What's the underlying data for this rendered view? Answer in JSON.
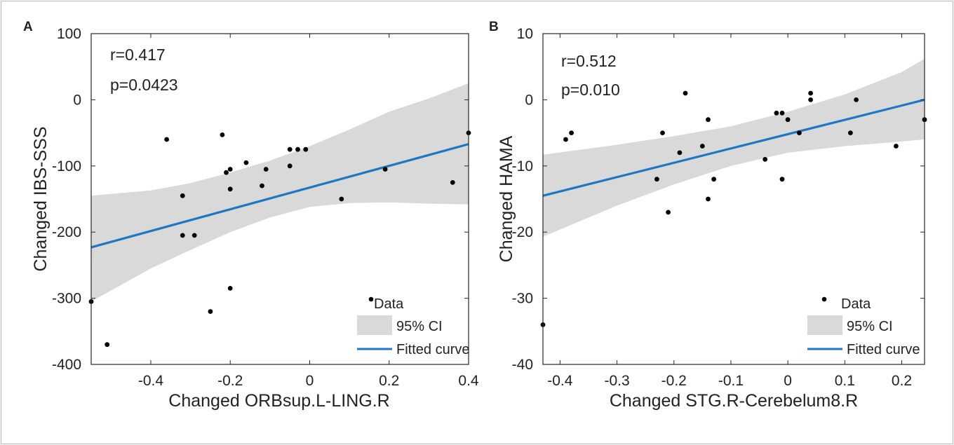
{
  "chart_data": [
    {
      "type": "scatter",
      "panel_label": "A",
      "xlabel": "Changed ORBsup.L-LING.R",
      "ylabel": "Changed IBS-SSS",
      "xlim": [
        -0.55,
        0.4
      ],
      "ylim": [
        -400,
        100
      ],
      "xticks": [
        -0.4,
        -0.2,
        0,
        0.2,
        0.4
      ],
      "xtick_labels": [
        "-0.4",
        "-0.2",
        "0",
        "0.2",
        "0.4"
      ],
      "yticks": [
        100,
        0,
        -100,
        -200,
        -300,
        -400
      ],
      "ytick_labels": [
        "100",
        "0",
        "-100",
        "-200",
        "-300",
        "-400"
      ],
      "annotations": [
        "r=0.417",
        "p=0.0423"
      ],
      "legend": [
        "Data",
        "95% CI",
        "Fitted curve"
      ],
      "legend_position": "bottom-right",
      "grid": false,
      "points": [
        {
          "x": -0.55,
          "y": -305
        },
        {
          "x": -0.51,
          "y": -370
        },
        {
          "x": -0.36,
          "y": -60
        },
        {
          "x": -0.32,
          "y": -145
        },
        {
          "x": -0.32,
          "y": -205
        },
        {
          "x": -0.29,
          "y": -205
        },
        {
          "x": -0.25,
          "y": -320
        },
        {
          "x": -0.22,
          "y": -53
        },
        {
          "x": -0.21,
          "y": -110
        },
        {
          "x": -0.2,
          "y": -105
        },
        {
          "x": -0.2,
          "y": -135
        },
        {
          "x": -0.2,
          "y": -285
        },
        {
          "x": -0.16,
          "y": -95
        },
        {
          "x": -0.12,
          "y": -130
        },
        {
          "x": -0.11,
          "y": -105
        },
        {
          "x": -0.05,
          "y": -75
        },
        {
          "x": -0.05,
          "y": -100
        },
        {
          "x": -0.03,
          "y": -75
        },
        {
          "x": -0.01,
          "y": -75
        },
        {
          "x": 0.08,
          "y": -150
        },
        {
          "x": 0.19,
          "y": -105
        },
        {
          "x": 0.36,
          "y": -125
        },
        {
          "x": 0.4,
          "y": -50
        }
      ],
      "fit_line": {
        "x": [
          -0.55,
          0.4
        ],
        "y": [
          -223,
          -67
        ]
      },
      "ci_upper": {
        "x": [
          -0.55,
          -0.4,
          -0.3,
          -0.2,
          -0.1,
          0,
          0.1,
          0.2,
          0.3,
          0.4
        ],
        "y": [
          -145,
          -137,
          -126,
          -110,
          -92,
          -70,
          -45,
          -18,
          2,
          25
        ]
      },
      "ci_lower": {
        "x": [
          -0.55,
          -0.4,
          -0.3,
          -0.2,
          -0.1,
          0,
          0.1,
          0.2,
          0.3,
          0.4
        ],
        "y": [
          -305,
          -255,
          -227,
          -200,
          -178,
          -162,
          -156,
          -155,
          -157,
          -158
        ]
      },
      "colors": {
        "data": "#000000",
        "ci": "#d9d9d9",
        "fit": "#1f77c4"
      }
    },
    {
      "type": "scatter",
      "panel_label": "B",
      "xlabel": "Changed STG.R-Cerebelum8.R",
      "ylabel": "Changed HAMA",
      "xlim": [
        -0.43,
        0.24
      ],
      "ylim": [
        -40,
        10
      ],
      "xticks": [
        -0.4,
        -0.3,
        -0.2,
        -0.1,
        0,
        0.1,
        0.2
      ],
      "xtick_labels": [
        "-0.4",
        "-0.3",
        "-0.2",
        "-0.1",
        "0",
        "0.1",
        "0.2"
      ],
      "yticks": [
        10,
        0,
        -10,
        -20,
        -30,
        -40
      ],
      "ytick_labels": [
        "10",
        "0",
        "-10",
        "-20",
        "-30",
        "-40"
      ],
      "annotations": [
        "r=0.512",
        "p=0.010"
      ],
      "legend": [
        "Data",
        "95% CI",
        "Fitted curve"
      ],
      "legend_position": "bottom-right",
      "grid": false,
      "points": [
        {
          "x": -0.43,
          "y": -34
        },
        {
          "x": -0.39,
          "y": -6
        },
        {
          "x": -0.38,
          "y": -5
        },
        {
          "x": -0.23,
          "y": -12
        },
        {
          "x": -0.22,
          "y": -5
        },
        {
          "x": -0.21,
          "y": -17
        },
        {
          "x": -0.19,
          "y": -8
        },
        {
          "x": -0.18,
          "y": 1
        },
        {
          "x": -0.15,
          "y": -7
        },
        {
          "x": -0.14,
          "y": -3
        },
        {
          "x": -0.14,
          "y": -15
        },
        {
          "x": -0.13,
          "y": -12
        },
        {
          "x": -0.04,
          "y": -9
        },
        {
          "x": -0.02,
          "y": -2
        },
        {
          "x": -0.01,
          "y": -2
        },
        {
          "x": -0.01,
          "y": -12
        },
        {
          "x": 0,
          "y": -3
        },
        {
          "x": 0.02,
          "y": -5
        },
        {
          "x": 0.04,
          "y": 1
        },
        {
          "x": 0.04,
          "y": 0
        },
        {
          "x": 0.11,
          "y": -5
        },
        {
          "x": 0.12,
          "y": 0
        },
        {
          "x": 0.19,
          "y": -7
        },
        {
          "x": 0.24,
          "y": -3
        }
      ],
      "fit_line": {
        "x": [
          -0.43,
          0.24
        ],
        "y": [
          -14.5,
          0
        ]
      },
      "ci_upper": {
        "x": [
          -0.43,
          -0.3,
          -0.2,
          -0.1,
          0,
          0.1,
          0.2,
          0.24
        ],
        "y": [
          -8.3,
          -6.8,
          -5.5,
          -4,
          -1.8,
          0.8,
          4.2,
          6.2
        ]
      },
      "ci_lower": {
        "x": [
          -0.43,
          -0.3,
          -0.2,
          -0.1,
          0,
          0.1,
          0.2,
          0.24
        ],
        "y": [
          -20.7,
          -16,
          -12.8,
          -10,
          -8,
          -7,
          -6.3,
          -6
        ]
      },
      "colors": {
        "data": "#000000",
        "ci": "#d9d9d9",
        "fit": "#1f77c4"
      }
    }
  ]
}
